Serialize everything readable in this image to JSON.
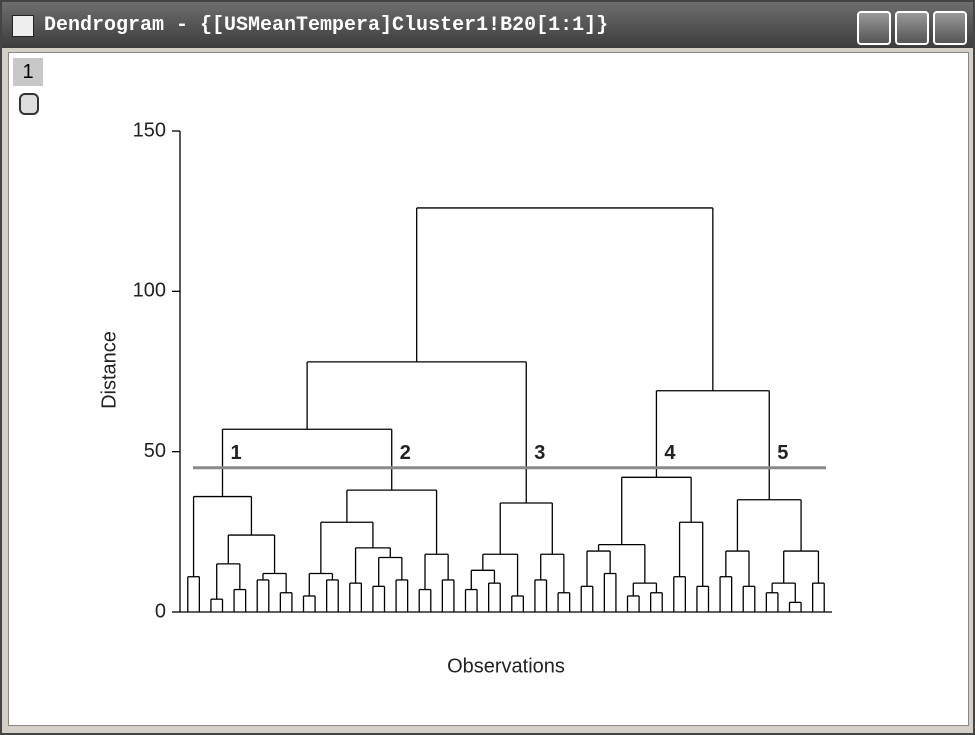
{
  "window": {
    "title": "Dendrogram - {[USMeanTempera]Cluster1!B20[1:1]}",
    "layer_tab": "1"
  },
  "chart_data": {
    "type": "dendrogram",
    "xlabel": "Observations",
    "ylabel": "Distance",
    "ylim": [
      0,
      150
    ],
    "yticks": [
      0,
      50,
      100,
      150
    ],
    "cutoff": 45,
    "cutoff_color": "#8a8a8a",
    "cluster_labels": [
      "1",
      "2",
      "3",
      "4",
      "5"
    ],
    "tree": {
      "height": 126,
      "children": [
        {
          "height": 78,
          "children": [
            {
              "height": 57,
              "children": [
                {
                  "height": 36,
                  "children": [
                    11,
                    {
                      "height": 24,
                      "children": [
                        {
                          "height": 15,
                          "children": [
                            4,
                            7
                          ]
                        },
                        {
                          "height": 12,
                          "children": [
                            10,
                            6
                          ]
                        }
                      ]
                    }
                  ]
                },
                {
                  "height": 38,
                  "children": [
                    {
                      "height": 28,
                      "children": [
                        {
                          "height": 12,
                          "children": [
                            5,
                            10
                          ]
                        },
                        {
                          "height": 20,
                          "children": [
                            9,
                            {
                              "height": 17,
                              "children": [
                                8,
                                10
                              ]
                            }
                          ]
                        }
                      ]
                    },
                    {
                      "height": 18,
                      "children": [
                        7,
                        10
                      ]
                    }
                  ]
                }
              ]
            },
            {
              "height": 34,
              "children": [
                {
                  "height": 18,
                  "children": [
                    {
                      "height": 13,
                      "children": [
                        7,
                        9
                      ]
                    },
                    5
                  ]
                },
                {
                  "height": 18,
                  "children": [
                    10,
                    6
                  ]
                }
              ]
            }
          ]
        },
        {
          "height": 69,
          "children": [
            {
              "height": 42,
              "children": [
                {
                  "height": 21,
                  "children": [
                    {
                      "height": 19,
                      "children": [
                        8,
                        12
                      ]
                    },
                    {
                      "height": 9,
                      "children": [
                        5,
                        6
                      ]
                    }
                  ]
                },
                {
                  "height": 28,
                  "children": [
                    11,
                    8
                  ]
                }
              ]
            },
            {
              "height": 35,
              "children": [
                {
                  "height": 19,
                  "children": [
                    11,
                    8
                  ]
                },
                {
                  "height": 19,
                  "children": [
                    {
                      "height": 9,
                      "children": [
                        6,
                        3
                      ]
                    },
                    9
                  ]
                }
              ]
            }
          ]
        }
      ]
    }
  }
}
